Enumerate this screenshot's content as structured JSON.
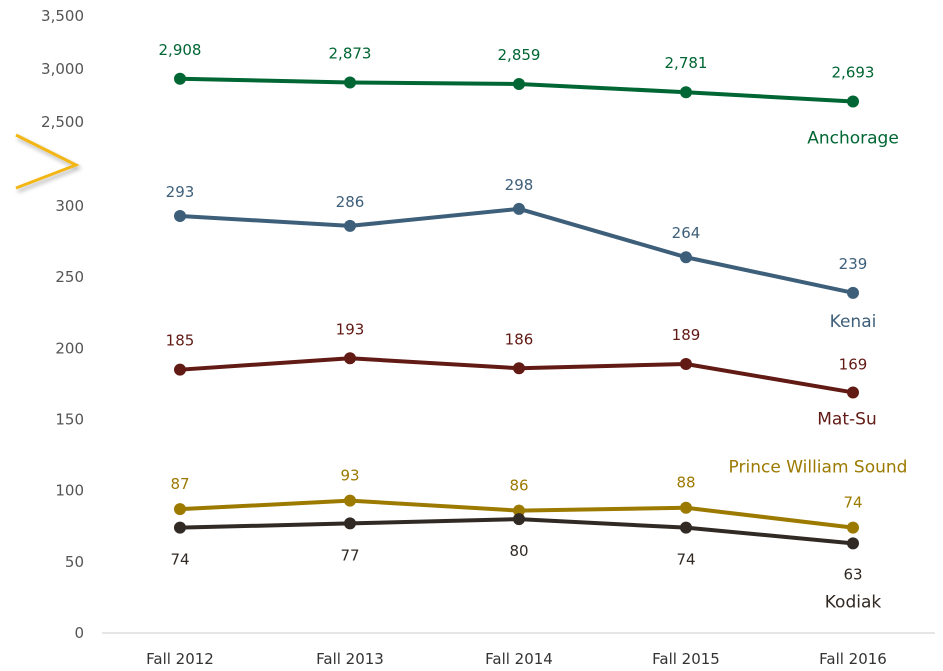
{
  "chart_data": {
    "type": "line",
    "categories": [
      "Fall 2012",
      "Fall 2013",
      "Fall 2014",
      "Fall 2015",
      "Fall 2016"
    ],
    "y_axis_broken": true,
    "y_ticks_upper": [
      "2,500",
      "3,000",
      "3,500"
    ],
    "y_ticks_lower": [
      "0",
      "50",
      "100",
      "150",
      "200",
      "250",
      "300"
    ],
    "series": [
      {
        "name": "Anchorage",
        "color": "#006633",
        "values": [
          2908,
          2873,
          2859,
          2781,
          2693
        ],
        "labels": [
          "2,908",
          "2,873",
          "2,859",
          "2,781",
          "2,693"
        ]
      },
      {
        "name": "Kenai",
        "color": "#3e5f7a",
        "values": [
          293,
          286,
          298,
          264,
          239
        ],
        "labels": [
          "293",
          "286",
          "298",
          "264",
          "239"
        ]
      },
      {
        "name": "Mat-Su",
        "color": "#621a14",
        "values": [
          185,
          193,
          186,
          189,
          169
        ],
        "labels": [
          "185",
          "193",
          "186",
          "189",
          "169"
        ]
      },
      {
        "name": "Prince William Sound",
        "color": "#9c7a00",
        "values": [
          87,
          93,
          86,
          88,
          74
        ],
        "labels": [
          "87",
          "93",
          "86",
          "88",
          "74"
        ]
      },
      {
        "name": "Kodiak",
        "color": "#312a24",
        "values": [
          74,
          77,
          80,
          74,
          63
        ],
        "labels": [
          "74",
          "77",
          "80",
          "74",
          "63"
        ]
      }
    ]
  }
}
